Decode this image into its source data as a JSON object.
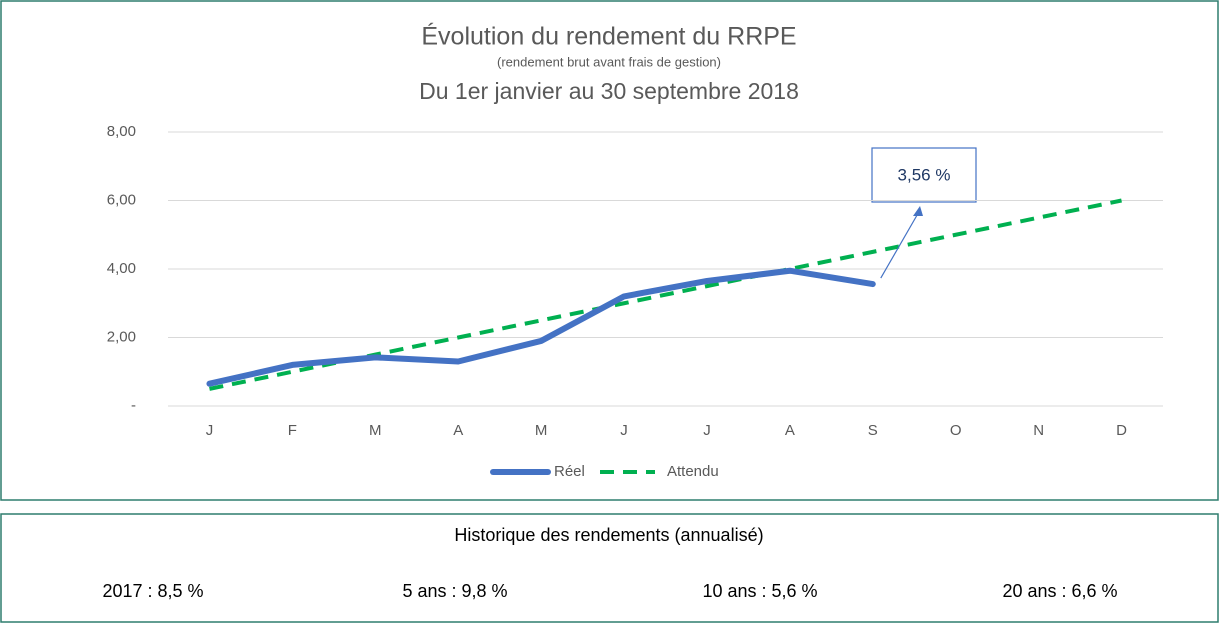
{
  "chart_data": {
    "type": "line",
    "title": "Évolution du rendement du RRPE",
    "subtitle": "(rendement brut avant frais de gestion)",
    "period": "Du 1er janvier au 30 septembre 2018",
    "categories": [
      "J",
      "F",
      "M",
      "A",
      "M",
      "J",
      "J",
      "A",
      "S",
      "O",
      "N",
      "D"
    ],
    "series": [
      {
        "name": "Réel",
        "color": "#4472c4",
        "values": [
          0.65,
          1.2,
          1.42,
          1.3,
          1.9,
          3.2,
          3.65,
          3.95,
          3.56,
          null,
          null,
          null
        ]
      },
      {
        "name": "Attendu",
        "color": "#00b050",
        "dashed": true,
        "values": [
          0.5,
          1.0,
          1.5,
          2.0,
          2.5,
          3.0,
          3.5,
          4.0,
          4.5,
          5.0,
          5.5,
          6.0
        ]
      }
    ],
    "annotation": "3,56 %",
    "ylim": [
      0,
      8
    ],
    "yticks": [
      {
        "value": 0,
        "label": "-"
      },
      {
        "value": 2,
        "label": "2,00"
      },
      {
        "value": 4,
        "label": "4,00"
      },
      {
        "value": 6,
        "label": "6,00"
      },
      {
        "value": 8,
        "label": "8,00"
      }
    ],
    "grid": true,
    "legend": "bottom"
  },
  "history": {
    "title": "Historique des rendements (annualisé)",
    "items": [
      "2017 : 8,5 %",
      "5 ans : 9,8 %",
      "10 ans : 5,6 %",
      "20 ans : 6,6 %"
    ]
  }
}
